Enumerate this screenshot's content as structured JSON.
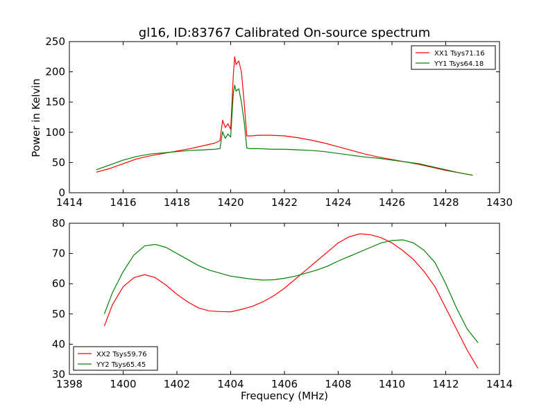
{
  "chart_data": [
    {
      "type": "line",
      "title": "gl16, ID:83767 Calibrated On-source spectrum",
      "xlabel": "",
      "ylabel": "Power in Kelvin",
      "xlim": [
        1414,
        1430
      ],
      "ylim": [
        0,
        250
      ],
      "xticks": [
        "1414",
        "1416",
        "1418",
        "1420",
        "1422",
        "1424",
        "1426",
        "1428",
        "1430"
      ],
      "yticks": [
        "0",
        "50",
        "100",
        "150",
        "200",
        "250"
      ],
      "legend_position": "top-right",
      "series": [
        {
          "name": "XX1 Tsys71.16",
          "color": "#ff0000",
          "x": [
            1415.0,
            1415.5,
            1416.0,
            1416.5,
            1417.0,
            1417.5,
            1418.0,
            1418.5,
            1419.0,
            1419.4,
            1419.6,
            1419.7,
            1419.8,
            1419.9,
            1420.0,
            1420.05,
            1420.1,
            1420.15,
            1420.2,
            1420.3,
            1420.4,
            1420.5,
            1420.6,
            1420.7,
            1420.8,
            1421.0,
            1421.5,
            1422.0,
            1422.5,
            1423.0,
            1423.5,
            1424.0,
            1424.5,
            1425.0,
            1425.5,
            1426.0,
            1426.5,
            1427.0,
            1427.5,
            1428.0,
            1428.5,
            1429.0
          ],
          "y": [
            34,
            40,
            48,
            56,
            61,
            65,
            69,
            73,
            78,
            82,
            86,
            120,
            108,
            114,
            105,
            150,
            195,
            225,
            212,
            218,
            200,
            150,
            94,
            94,
            94,
            95,
            95,
            94,
            91,
            87,
            82,
            76,
            70,
            64,
            59,
            55,
            51,
            47,
            42,
            37,
            33,
            29
          ]
        },
        {
          "name": "YY1 Tsys64.18",
          "color": "#008000",
          "x": [
            1415.0,
            1415.5,
            1416.0,
            1416.5,
            1417.0,
            1417.5,
            1418.0,
            1418.5,
            1419.0,
            1419.4,
            1419.6,
            1419.7,
            1419.8,
            1419.9,
            1420.0,
            1420.05,
            1420.1,
            1420.15,
            1420.2,
            1420.3,
            1420.4,
            1420.5,
            1420.6,
            1420.7,
            1420.8,
            1421.0,
            1421.5,
            1422.0,
            1422.5,
            1423.0,
            1423.5,
            1424.0,
            1424.5,
            1425.0,
            1425.5,
            1426.0,
            1426.5,
            1427.0,
            1427.5,
            1428.0,
            1428.5,
            1429.0
          ],
          "y": [
            38,
            46,
            54,
            60,
            64,
            66,
            68,
            70,
            71,
            72,
            73,
            101,
            90,
            97,
            92,
            130,
            165,
            178,
            168,
            172,
            150,
            118,
            74,
            73,
            73,
            73,
            72,
            72,
            71,
            70,
            68,
            65,
            62,
            59,
            57,
            54,
            51,
            48,
            43,
            38,
            33,
            29
          ]
        }
      ]
    },
    {
      "type": "line",
      "title": "",
      "xlabel": "Frequency (MHz)",
      "ylabel": "",
      "xlim": [
        1398,
        1414
      ],
      "ylim": [
        30,
        80
      ],
      "xticks": [
        "1398",
        "1400",
        "1402",
        "1404",
        "1406",
        "1408",
        "1410",
        "1412",
        "1414"
      ],
      "yticks": [
        "30",
        "40",
        "50",
        "60",
        "70",
        "80"
      ],
      "legend_position": "lower-left",
      "series": [
        {
          "name": "XX2 Tsys59.76",
          "color": "#ff0000",
          "x": [
            1399.3,
            1399.6,
            1400.0,
            1400.4,
            1400.8,
            1401.2,
            1401.6,
            1402.0,
            1402.4,
            1402.8,
            1403.2,
            1403.6,
            1404.0,
            1404.4,
            1404.8,
            1405.2,
            1405.6,
            1406.0,
            1406.4,
            1406.8,
            1407.2,
            1407.6,
            1408.0,
            1408.4,
            1408.8,
            1409.2,
            1409.6,
            1410.0,
            1410.4,
            1410.8,
            1411.2,
            1411.6,
            1412.0,
            1412.4,
            1412.8,
            1413.2
          ],
          "y": [
            46,
            53,
            59,
            62,
            63,
            62,
            59.5,
            56.5,
            54,
            52,
            51,
            50.8,
            50.7,
            51.5,
            52.5,
            54,
            56,
            58.5,
            61.5,
            64.5,
            67.5,
            70.5,
            73.5,
            75.5,
            76.5,
            76.2,
            75.2,
            73.5,
            71,
            68,
            64,
            59,
            52,
            45,
            38,
            32
          ]
        },
        {
          "name": "YY2 Tsys65.45",
          "color": "#008000",
          "x": [
            1399.3,
            1399.6,
            1400.0,
            1400.4,
            1400.8,
            1401.2,
            1401.6,
            1402.0,
            1402.4,
            1402.8,
            1403.2,
            1403.6,
            1404.0,
            1404.4,
            1404.8,
            1405.2,
            1405.6,
            1406.0,
            1406.4,
            1406.8,
            1407.2,
            1407.6,
            1408.0,
            1408.4,
            1408.8,
            1409.2,
            1409.6,
            1410.0,
            1410.4,
            1410.8,
            1411.2,
            1411.6,
            1412.0,
            1412.4,
            1412.8,
            1413.2
          ],
          "y": [
            50,
            57,
            64,
            69.5,
            72.5,
            73,
            72,
            70,
            68,
            66,
            64.5,
            63.5,
            62.5,
            62,
            61.5,
            61.2,
            61.3,
            61.8,
            62.5,
            63.5,
            64.5,
            65.8,
            67.5,
            69,
            70.5,
            72,
            73.5,
            74.3,
            74.5,
            73.5,
            71,
            67,
            60,
            52,
            45,
            40.5
          ]
        }
      ]
    }
  ]
}
